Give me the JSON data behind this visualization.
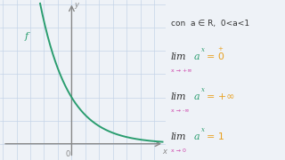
{
  "bg_color": "#eef2f7",
  "grid_color": "#c5d4e8",
  "curve_color": "#2a9d6f",
  "axis_color": "#888888",
  "lim_color": "#333333",
  "expr_color": "#2a9d6f",
  "eq_color": "#e8a020",
  "sub_color": "#cc44aa",
  "zero_sub_color": "#cc44aa",
  "a_val": 0.38,
  "xlim": [
    -2.6,
    3.4
  ],
  "ylim": [
    -0.35,
    3.1
  ]
}
